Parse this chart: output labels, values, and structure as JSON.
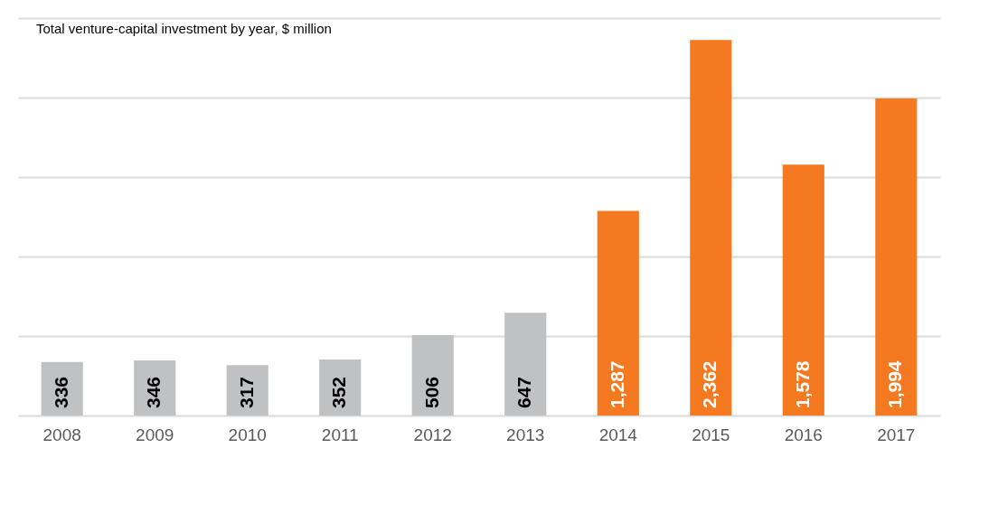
{
  "chart_data": {
    "type": "bar",
    "title": "Total venture-capital investment by year, $ million",
    "categories": [
      "2008",
      "2009",
      "2010",
      "2011",
      "2012",
      "2013",
      "2014",
      "2015",
      "2016",
      "2017"
    ],
    "values": [
      336,
      346,
      317,
      352,
      506,
      647,
      1287,
      2362,
      1578,
      1994
    ],
    "value_labels": [
      "336",
      "346",
      "317",
      "352",
      "506",
      "647",
      "1,287",
      "2,362",
      "1,578",
      "1,994"
    ],
    "colors": [
      "#c0c1c3",
      "#c0c1c3",
      "#c0c1c3",
      "#c0c1c3",
      "#c0c1c3",
      "#c0c1c3",
      "#f47920",
      "#f47920",
      "#f47920",
      "#f47920"
    ],
    "ylim": [
      0,
      2500
    ],
    "yticks": [
      {
        "value": 0,
        "label": null
      },
      {
        "value": 500,
        "label": null
      },
      {
        "value": 1000,
        "label": null
      },
      {
        "value": 1500,
        "label": null
      },
      {
        "value": 2000,
        "label": null
      },
      {
        "value": 2500,
        "label": null
      }
    ],
    "grid": true,
    "tick_labels": "x"
  }
}
